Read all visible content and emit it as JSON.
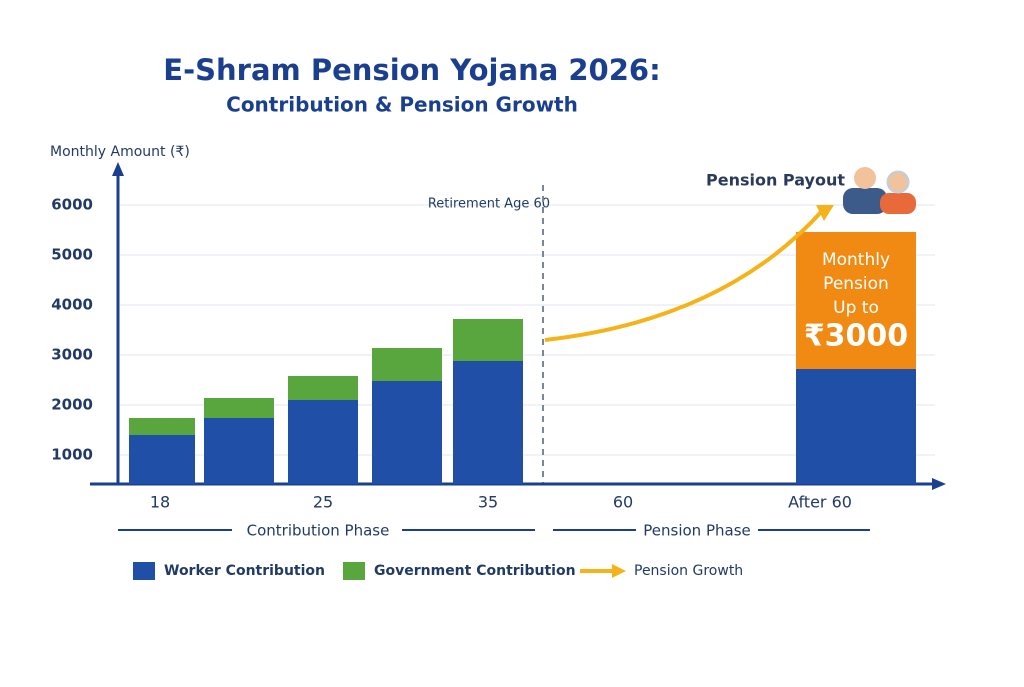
{
  "chart_data": {
    "type": "stacked_bar",
    "title": "E-Shram Pension Yojana 2026:",
    "subtitle": "Contribution & Pension Growth",
    "y_label": "Monthly Amount (₹)",
    "categories": [
      "18",
      null,
      "25",
      null,
      "35",
      "60",
      "After 60"
    ],
    "series": [
      {
        "name": "Worker Contribution",
        "color": "#1f4fa6",
        "values": [
          1400,
          1740,
          2100,
          2480,
          2880,
          null,
          2720
        ]
      },
      {
        "name": "Government Contribution",
        "color": "#5aa63e",
        "values": [
          340,
          400,
          480,
          660,
          840,
          null,
          null
        ]
      }
    ],
    "growth": {
      "name": "Pension Growth",
      "color": "#f5b31a",
      "values": [
        3300,
        5880
      ]
    },
    "pension_box": {
      "value": 2740,
      "color": "#f08a12",
      "lines": [
        "Monthly",
        "Pension",
        "Up to"
      ],
      "amount": "₹3000"
    },
    "ylim": [
      420,
      6700
    ],
    "yticks": [
      1000,
      2000,
      3000,
      4000,
      5000,
      6000
    ],
    "grid": true,
    "retirement_label": "Retirement Age 60",
    "payout_label": "Pension Payout",
    "phases": [
      "Contribution Phase",
      "Pension Phase"
    ]
  }
}
